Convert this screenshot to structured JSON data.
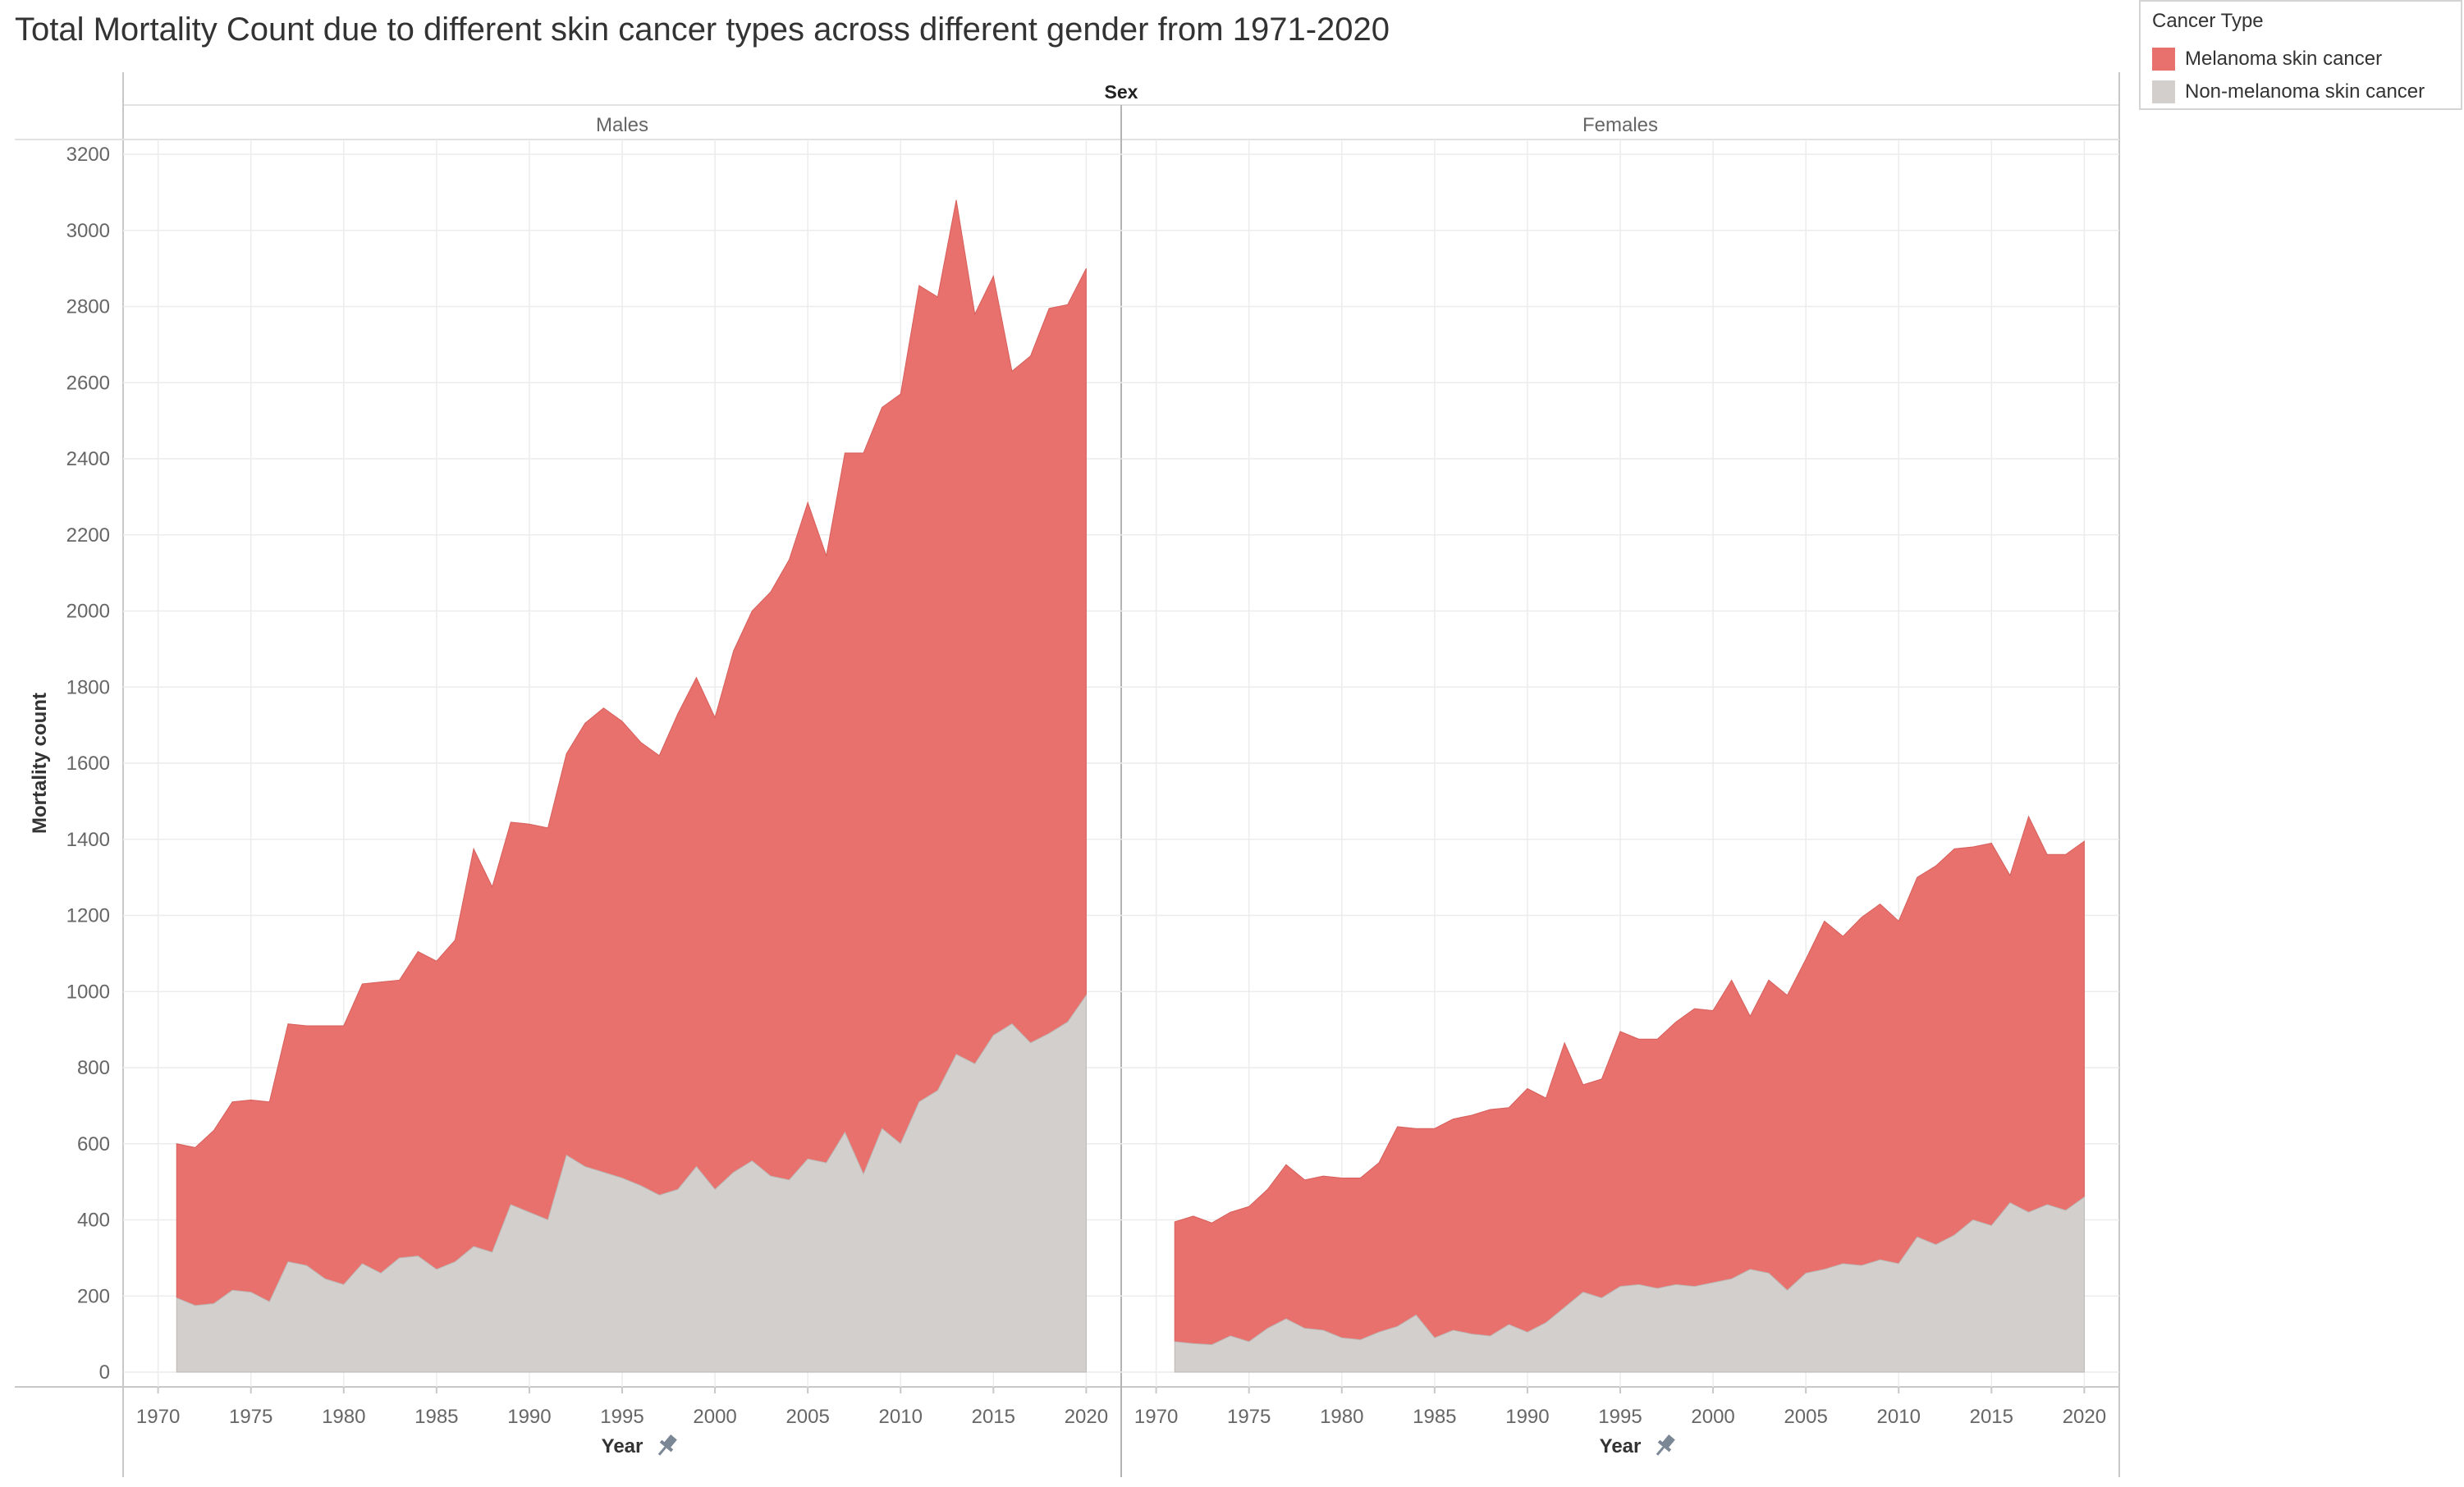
{
  "title": "Total Mortality Count due to different skin cancer types across different gender from 1971-2020",
  "legend": {
    "title": "Cancer Type",
    "items": [
      {
        "label": "Melanoma skin cancer",
        "color": "#E8716D"
      },
      {
        "label": "Non-melanoma skin cancer",
        "color": "#D3CFCC"
      }
    ]
  },
  "chart_data": {
    "type": "area",
    "stacked": true,
    "facet_header": "Sex",
    "facets": [
      "Males",
      "Females"
    ],
    "xlabel": "Year",
    "ylabel": "Mortality count",
    "ylim": [
      0,
      3200
    ],
    "yticks": [
      0,
      200,
      400,
      600,
      800,
      1000,
      1200,
      1400,
      1600,
      1800,
      2000,
      2200,
      2400,
      2600,
      2800,
      3000,
      3200
    ],
    "xticks": [
      1970,
      1975,
      1980,
      1985,
      1990,
      1995,
      2000,
      2005,
      2010,
      2015,
      2020
    ],
    "xlim": [
      1969,
      2021
    ],
    "grid": true,
    "legend_position": "top-right",
    "x": [
      1971,
      1972,
      1973,
      1974,
      1975,
      1976,
      1977,
      1978,
      1979,
      1980,
      1981,
      1982,
      1983,
      1984,
      1985,
      1986,
      1987,
      1988,
      1989,
      1990,
      1991,
      1992,
      1993,
      1994,
      1995,
      1996,
      1997,
      1998,
      1999,
      2000,
      2001,
      2002,
      2003,
      2004,
      2005,
      2006,
      2007,
      2008,
      2009,
      2010,
      2011,
      2012,
      2013,
      2014,
      2015,
      2016,
      2017,
      2018,
      2019,
      2020
    ],
    "panels": [
      {
        "facet": "Males",
        "series": [
          {
            "name": "Non-melanoma skin cancer",
            "values": [
              195,
              175,
              180,
              215,
              210,
              185,
              290,
              280,
              245,
              230,
              285,
              260,
              300,
              305,
              270,
              290,
              330,
              315,
              440,
              420,
              400,
              570,
              540,
              525,
              510,
              490,
              465,
              480,
              540,
              480,
              525,
              555,
              515,
              505,
              560,
              550,
              630,
              520,
              640,
              600,
              710,
              740,
              835,
              810,
              885,
              915,
              865,
              890,
              920,
              990
            ]
          },
          {
            "name": "Melanoma skin cancer",
            "values": [
              405,
              415,
              455,
              495,
              505,
              525,
              625,
              630,
              665,
              680,
              735,
              765,
              730,
              800,
              810,
              845,
              1045,
              960,
              1005,
              1020,
              1030,
              1055,
              1165,
              1220,
              1200,
              1165,
              1155,
              1250,
              1285,
              1240,
              1370,
              1445,
              1535,
              1630,
              1725,
              1595,
              1785,
              1895,
              1895,
              1970,
              2145,
              2085,
              2245,
              1970,
              1995,
              1715,
              1805,
              1905,
              1885,
              1910
            ]
          }
        ]
      },
      {
        "facet": "Females",
        "series": [
          {
            "name": "Non-melanoma skin cancer",
            "values": [
              80,
              75,
              72,
              95,
              80,
              115,
              140,
              115,
              110,
              90,
              85,
              105,
              120,
              150,
              90,
              110,
              100,
              95,
              125,
              105,
              130,
              170,
              210,
              195,
              225,
              230,
              220,
              230,
              225,
              235,
              245,
              270,
              260,
              215,
              260,
              270,
              285,
              280,
              295,
              285,
              355,
              335,
              360,
              400,
              385,
              445,
              420,
              440,
              425,
              460
            ]
          },
          {
            "name": "Melanoma skin cancer",
            "values": [
              315,
              335,
              320,
              325,
              355,
              365,
              405,
              390,
              405,
              420,
              425,
              445,
              525,
              490,
              550,
              555,
              575,
              595,
              570,
              640,
              590,
              695,
              545,
              575,
              670,
              645,
              655,
              690,
              730,
              715,
              785,
              665,
              770,
              775,
              825,
              915,
              860,
              915,
              935,
              900,
              945,
              995,
              1015,
              980,
              1005,
              860,
              1040,
              920,
              935,
              935
            ]
          }
        ]
      }
    ]
  }
}
